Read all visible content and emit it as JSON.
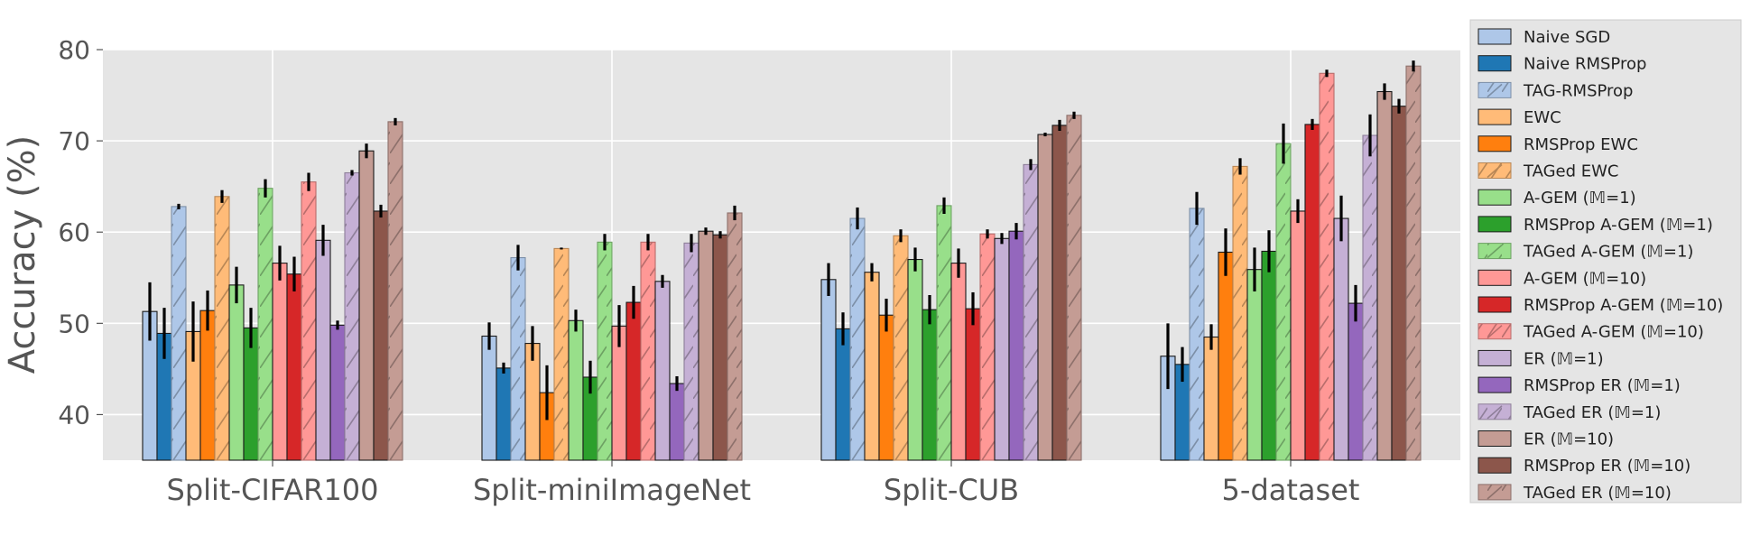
{
  "chart_data": {
    "type": "bar",
    "ylabel": "Accuracy (%)",
    "ylim": [
      35.0,
      80.0
    ],
    "yticks": [
      40,
      50,
      60,
      70,
      80
    ],
    "grid": true,
    "legend_placement": "right",
    "categories": [
      "Split-CIFAR100",
      "Split-miniImageNet",
      "Split-CUB",
      "5-dataset"
    ],
    "series": [
      {
        "name": "Naive SGD",
        "color": "#aec7e8",
        "hatch": false,
        "values": [
          51.3,
          48.6,
          54.8,
          46.4
        ],
        "errors": [
          3.2,
          1.5,
          1.8,
          3.6
        ]
      },
      {
        "name": "Naive RMSProp",
        "color": "#1f77b4",
        "hatch": false,
        "values": [
          48.9,
          45.1,
          49.4,
          45.5
        ],
        "errors": [
          2.8,
          0.6,
          1.8,
          1.9
        ]
      },
      {
        "name": "TAG-RMSProp",
        "color": "#aec7e8",
        "hatch": true,
        "values": [
          62.8,
          57.2,
          61.5,
          62.6
        ],
        "errors": [
          0.3,
          1.4,
          1.2,
          1.8
        ]
      },
      {
        "name": "EWC",
        "color": "#ffbb78",
        "hatch": false,
        "values": [
          49.1,
          47.8,
          55.6,
          48.5
        ],
        "errors": [
          3.3,
          1.9,
          1.0,
          1.4
        ]
      },
      {
        "name": "RMSProp EWC",
        "color": "#ff7f0e",
        "hatch": false,
        "values": [
          51.4,
          42.4,
          50.9,
          57.8
        ],
        "errors": [
          2.2,
          3.0,
          1.8,
          2.6
        ]
      },
      {
        "name": "TAGed EWC",
        "color": "#ffbb78",
        "hatch": true,
        "values": [
          63.9,
          58.2,
          59.6,
          67.2
        ],
        "errors": [
          0.7,
          0.1,
          0.7,
          0.9
        ]
      },
      {
        "name": "A-GEM (𝕄=1)",
        "color": "#98df8a",
        "hatch": false,
        "values": [
          54.2,
          50.3,
          57.0,
          55.9
        ],
        "errors": [
          2.0,
          1.2,
          1.3,
          2.4
        ]
      },
      {
        "name": "RMSProp A-GEM (𝕄=1)",
        "color": "#2ca02c",
        "hatch": false,
        "values": [
          49.5,
          44.1,
          51.5,
          57.9
        ],
        "errors": [
          2.2,
          1.8,
          1.6,
          2.3
        ]
      },
      {
        "name": "TAGed A-GEM (𝕄=1)",
        "color": "#98df8a",
        "hatch": true,
        "values": [
          64.8,
          58.9,
          62.9,
          69.7
        ],
        "errors": [
          1.0,
          0.9,
          0.9,
          2.2
        ]
      },
      {
        "name": "A-GEM (𝕄=10)",
        "color": "#ff9896",
        "hatch": false,
        "values": [
          56.6,
          49.7,
          56.6,
          62.3
        ],
        "errors": [
          1.9,
          2.3,
          1.6,
          1.3
        ]
      },
      {
        "name": "RMSProp A-GEM (𝕄=10)",
        "color": "#d62728",
        "hatch": false,
        "values": [
          55.4,
          52.3,
          51.6,
          71.8
        ],
        "errors": [
          1.9,
          1.8,
          1.8,
          0.6
        ]
      },
      {
        "name": "TAGed A-GEM (𝕄=10)",
        "color": "#ff9896",
        "hatch": true,
        "values": [
          65.5,
          58.9,
          59.8,
          77.4
        ],
        "errors": [
          1.0,
          0.9,
          0.5,
          0.4
        ]
      },
      {
        "name": "ER (𝕄=1)",
        "color": "#c5b0d5",
        "hatch": false,
        "values": [
          59.1,
          54.6,
          59.3,
          61.5
        ],
        "errors": [
          1.7,
          0.7,
          0.6,
          2.5
        ]
      },
      {
        "name": "RMSProp ER (𝕄=1)",
        "color": "#9467bd",
        "hatch": false,
        "values": [
          49.8,
          43.4,
          60.1,
          52.2
        ],
        "errors": [
          0.5,
          0.8,
          0.9,
          2.0
        ]
      },
      {
        "name": "TAGed ER (𝕄=1)",
        "color": "#c5b0d5",
        "hatch": true,
        "values": [
          66.5,
          58.8,
          67.4,
          70.6
        ],
        "errors": [
          0.3,
          1.0,
          0.6,
          2.3
        ]
      },
      {
        "name": "ER (𝕄=10)",
        "color": "#c49c94",
        "hatch": false,
        "values": [
          68.9,
          60.1,
          70.7,
          75.4
        ],
        "errors": [
          0.8,
          0.4,
          0.2,
          0.9
        ]
      },
      {
        "name": "RMSProp ER (𝕄=10)",
        "color": "#8c564b",
        "hatch": false,
        "values": [
          62.3,
          59.7,
          71.7,
          73.8
        ],
        "errors": [
          0.7,
          0.4,
          0.6,
          0.8
        ]
      },
      {
        "name": "TAGed ER (𝕄=10)",
        "color": "#c49c94",
        "hatch": true,
        "values": [
          72.1,
          62.1,
          72.8,
          78.2
        ],
        "errors": [
          0.4,
          0.8,
          0.4,
          0.6
        ]
      }
    ]
  }
}
